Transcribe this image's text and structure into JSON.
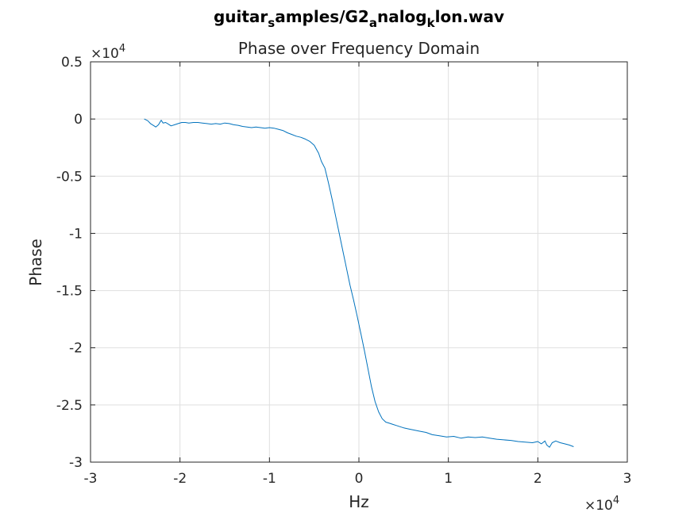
{
  "chart_data": {
    "type": "line",
    "title": {
      "prefix": "guitar",
      "sub1": "s",
      "mid": "amples/G2",
      "sub2": "a",
      "mid2": "nalog",
      "sub3": "k",
      "suffix": "lon.wav"
    },
    "subtitle": "Phase over Frequency Domain",
    "xlabel": "Hz",
    "ylabel": "Phase",
    "x_exponent": {
      "base": "×10",
      "power": "4"
    },
    "y_exponent": {
      "base": "×10",
      "power": "4"
    },
    "xlim": [
      -3,
      3
    ],
    "ylim": [
      -3,
      0.5
    ],
    "x_ticks": [
      -3,
      -2,
      -1,
      0,
      1,
      2,
      3
    ],
    "x_tick_labels": [
      "-3",
      "-2",
      "-1",
      "0",
      "1",
      "2",
      "3"
    ],
    "y_ticks": [
      0.5,
      0,
      -0.5,
      -1,
      -1.5,
      -2,
      -2.5,
      -3
    ],
    "y_tick_labels": [
      "0.5",
      "0",
      "-0.5",
      "-1",
      "-1.5",
      "-2",
      "-2.5",
      "-3"
    ],
    "grid": true,
    "line_color": "#0072BD",
    "series": [
      {
        "x": [
          -2.4,
          -2.36,
          -2.33,
          -2.3,
          -2.27,
          -2.24,
          -2.21,
          -2.19,
          -2.16,
          -2.13,
          -2.1,
          -2.06,
          -2.02,
          -1.98,
          -1.94,
          -1.9,
          -1.85,
          -1.8,
          -1.75,
          -1.7,
          -1.65,
          -1.6,
          -1.55,
          -1.5,
          -1.45,
          -1.4,
          -1.35,
          -1.3,
          -1.25,
          -1.2,
          -1.15,
          -1.1,
          -1.05,
          -1.0,
          -0.95,
          -0.9,
          -0.85,
          -0.8,
          -0.75,
          -0.7,
          -0.65,
          -0.6,
          -0.55,
          -0.5,
          -0.45,
          -0.42,
          -0.38,
          -0.34,
          -0.3,
          -0.26,
          -0.22,
          -0.18,
          -0.14,
          -0.1,
          -0.06,
          -0.02,
          0.02,
          0.06,
          0.1,
          0.14,
          0.18,
          0.22,
          0.26,
          0.3,
          0.34,
          0.38,
          0.42,
          0.46,
          0.5,
          0.56,
          0.62,
          0.68,
          0.75,
          0.82,
          0.9,
          0.98,
          1.06,
          1.14,
          1.22,
          1.3,
          1.38,
          1.46,
          1.54,
          1.62,
          1.7,
          1.78,
          1.86,
          1.94,
          2.0,
          2.04,
          2.08,
          2.1,
          2.13,
          2.16,
          2.2,
          2.25,
          2.3,
          2.35,
          2.4
        ],
        "y": [
          -0.0,
          -0.015,
          -0.04,
          -0.055,
          -0.07,
          -0.05,
          -0.01,
          -0.035,
          -0.03,
          -0.045,
          -0.06,
          -0.05,
          -0.04,
          -0.03,
          -0.03,
          -0.035,
          -0.03,
          -0.03,
          -0.035,
          -0.04,
          -0.045,
          -0.04,
          -0.045,
          -0.035,
          -0.04,
          -0.05,
          -0.055,
          -0.065,
          -0.07,
          -0.075,
          -0.07,
          -0.075,
          -0.08,
          -0.075,
          -0.08,
          -0.09,
          -0.1,
          -0.12,
          -0.135,
          -0.15,
          -0.16,
          -0.175,
          -0.195,
          -0.23,
          -0.3,
          -0.37,
          -0.43,
          -0.56,
          -0.7,
          -0.85,
          -1.0,
          -1.15,
          -1.3,
          -1.45,
          -1.58,
          -1.72,
          -1.87,
          -2.02,
          -2.18,
          -2.34,
          -2.47,
          -2.56,
          -2.62,
          -2.65,
          -2.66,
          -2.67,
          -2.68,
          -2.69,
          -2.7,
          -2.71,
          -2.72,
          -2.73,
          -2.74,
          -2.76,
          -2.77,
          -2.78,
          -2.775,
          -2.79,
          -2.78,
          -2.785,
          -2.78,
          -2.79,
          -2.8,
          -2.805,
          -2.81,
          -2.82,
          -2.825,
          -2.83,
          -2.82,
          -2.84,
          -2.815,
          -2.85,
          -2.87,
          -2.83,
          -2.815,
          -2.83,
          -2.84,
          -2.85,
          -2.865
        ]
      }
    ]
  }
}
